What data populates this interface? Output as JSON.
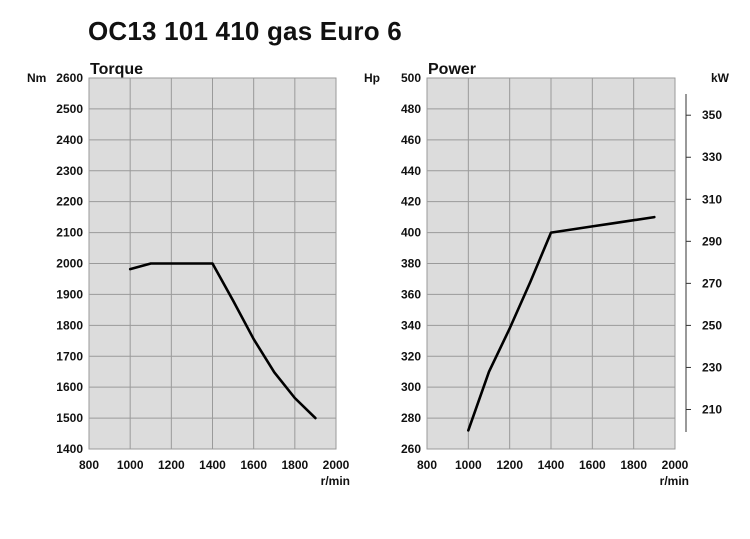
{
  "title": "OC13 101 410 gas Euro 6",
  "colors": {
    "plot_background": "#dcdcdc",
    "grid": "#9a9a9a",
    "line": "#000000"
  },
  "chart_data": [
    {
      "type": "line",
      "title": "Torque",
      "ylabel": "Nm",
      "xlabel": "r/min",
      "xlim": [
        800,
        2000
      ],
      "ylim": [
        1400,
        2600
      ],
      "x_ticks": [
        800,
        1000,
        1200,
        1400,
        1600,
        1800,
        2000
      ],
      "y_ticks": [
        1400,
        1500,
        1600,
        1700,
        1800,
        1900,
        2000,
        2100,
        2200,
        2300,
        2400,
        2500,
        2600
      ],
      "grid": true,
      "series": [
        {
          "x": [
            1000,
            1100,
            1200,
            1300,
            1400,
            1500,
            1600,
            1700,
            1800,
            1900
          ],
          "y": [
            1982,
            2000,
            2000,
            2000,
            2000,
            1880,
            1755,
            1648,
            1565,
            1500
          ]
        }
      ]
    },
    {
      "type": "line",
      "title": "Power",
      "ylabel": "Hp",
      "y2label": "kW",
      "xlabel": "r/min",
      "xlim": [
        800,
        2000
      ],
      "ylim": [
        260,
        500
      ],
      "y2lim": [
        191.2,
        367.7
      ],
      "x_ticks": [
        800,
        1000,
        1200,
        1400,
        1600,
        1800,
        2000
      ],
      "y_ticks": [
        260,
        280,
        300,
        320,
        340,
        360,
        380,
        400,
        420,
        440,
        460,
        480,
        500
      ],
      "y2_ticks": [
        210,
        230,
        250,
        270,
        290,
        310,
        330,
        350
      ],
      "grid": true,
      "series": [
        {
          "x": [
            1000,
            1100,
            1200,
            1300,
            1400,
            1500,
            1600,
            1700,
            1800,
            1900
          ],
          "y": [
            272,
            310,
            338,
            368,
            400,
            402,
            404,
            406,
            408,
            410
          ]
        }
      ]
    }
  ]
}
